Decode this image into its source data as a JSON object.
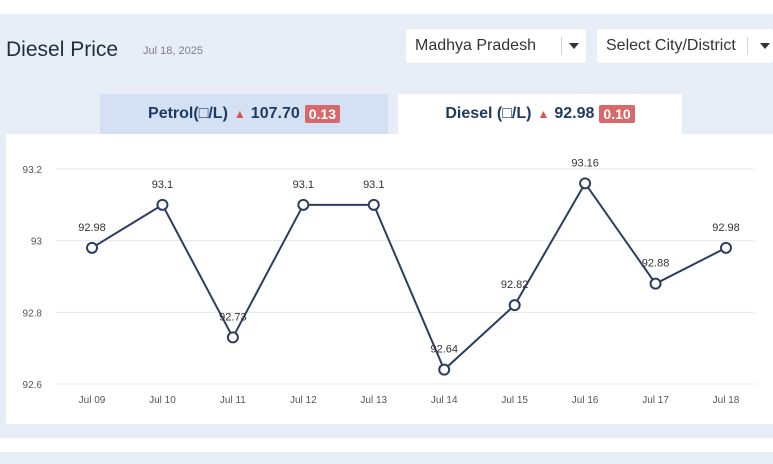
{
  "header": {
    "title": "Diesel Price",
    "date": "Jul 18, 2025"
  },
  "filters": {
    "state": "Madhya Pradesh",
    "city_placeholder": "Select City/District"
  },
  "tabs": [
    {
      "label": "Petrol(□/L)",
      "value": "107.70",
      "change": "0.13",
      "active": false
    },
    {
      "label": "Diesel (□/L)",
      "value": "92.98",
      "change": "0.10",
      "active": true
    }
  ],
  "colors": {
    "line": "#2c3e60",
    "badge": "#d66a6a",
    "up_arrow": "#d9534f",
    "panel_bg": "#e8eef7"
  },
  "chart_data": {
    "type": "line",
    "categories": [
      "Jul 09",
      "Jul 10",
      "Jul 11",
      "Jul 12",
      "Jul 13",
      "Jul 14",
      "Jul 15",
      "Jul 16",
      "Jul 17",
      "Jul 18"
    ],
    "values": [
      92.98,
      93.1,
      92.73,
      93.1,
      93.1,
      92.64,
      92.82,
      93.16,
      92.88,
      92.98
    ],
    "data_labels": [
      "92.98",
      "93.1",
      "92.73",
      "93.1",
      "93.1",
      "92.64",
      "92.82",
      "93.16",
      "92.88",
      "92.98"
    ],
    "yticks": [
      92.6,
      92.8,
      93,
      93.2
    ],
    "ytick_labels": [
      "92.6",
      "92.8",
      "93",
      "93.2"
    ],
    "ylim": [
      92.6,
      93.2
    ],
    "grid": true,
    "legend": "none"
  }
}
